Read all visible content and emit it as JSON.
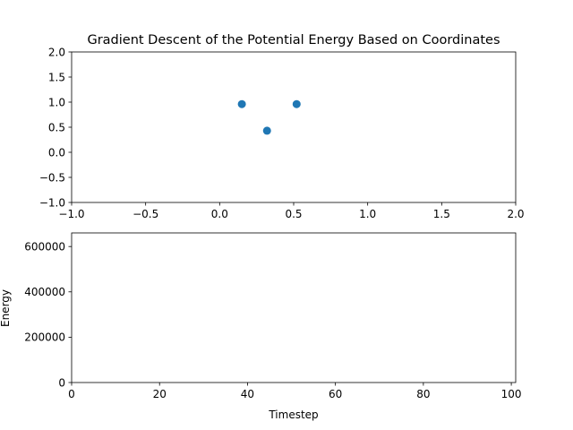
{
  "chart_data": [
    {
      "type": "scatter",
      "title": "Gradient Descent of the Potential Energy Based on Coordinates",
      "xlabel": "",
      "ylabel": "",
      "xlim": [
        -1.0,
        2.0
      ],
      "ylim": [
        -1.0,
        2.0
      ],
      "x_ticks": [
        "−1.0",
        "−0.5",
        "0.0",
        "0.5",
        "1.0",
        "1.5",
        "2.0"
      ],
      "y_ticks": [
        "−1.0",
        "−0.5",
        "0.0",
        "0.5",
        "1.0",
        "1.5",
        "2.0"
      ],
      "grid": false,
      "color": "#1f77b4",
      "points": [
        {
          "x": 0.15,
          "y": 0.96
        },
        {
          "x": 0.32,
          "y": 0.43
        },
        {
          "x": 0.52,
          "y": 0.96
        }
      ]
    },
    {
      "type": "line",
      "title": "",
      "xlabel": "Timestep",
      "ylabel": "Energy",
      "xlim": [
        0,
        101
      ],
      "ylim": [
        0,
        660000
      ],
      "x_ticks": [
        "0",
        "20",
        "40",
        "60",
        "80",
        "100"
      ],
      "y_ticks": [
        "0",
        "200000",
        "400000",
        "600000"
      ],
      "grid": false,
      "series": []
    }
  ]
}
